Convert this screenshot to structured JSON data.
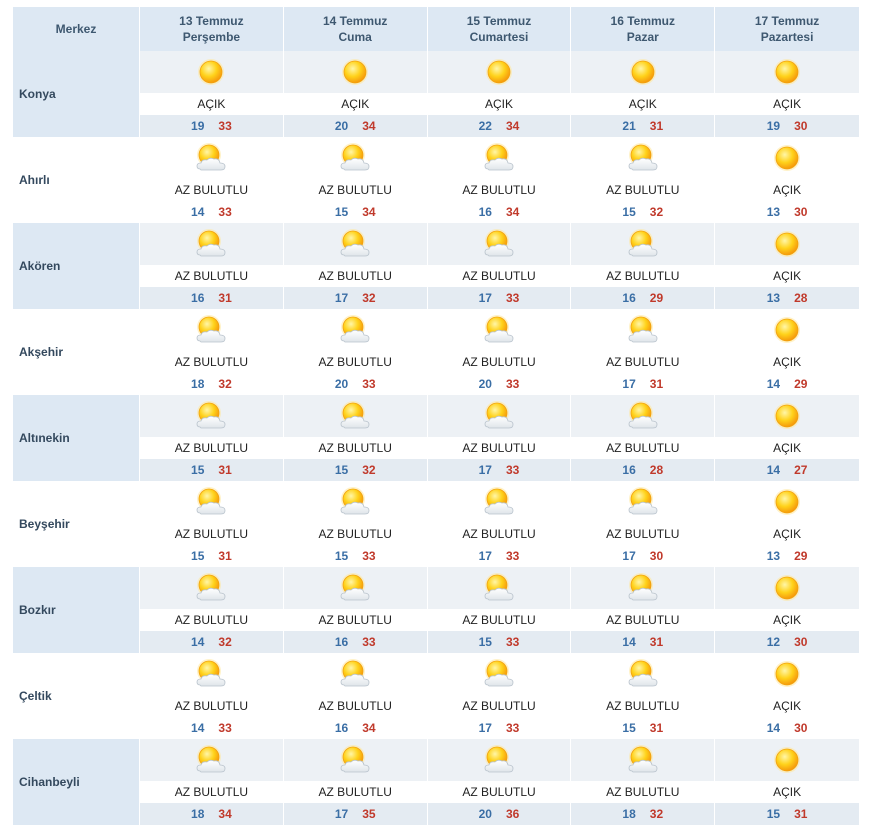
{
  "header": {
    "city_col": "Merkez",
    "days": [
      {
        "date": "13 Temmuz",
        "weekday": "Perşembe"
      },
      {
        "date": "14 Temmuz",
        "weekday": "Cuma"
      },
      {
        "date": "15 Temmuz",
        "weekday": "Cumartesi"
      },
      {
        "date": "16 Temmuz",
        "weekday": "Pazar"
      },
      {
        "date": "17 Temmuz",
        "weekday": "Pazartesi"
      }
    ]
  },
  "icons": {
    "clear": "sun-icon",
    "partly": "partly-cloudy-icon"
  },
  "colors": {
    "low": "#3a6ea5",
    "high": "#c0392b",
    "header_bg": "#dde8f3"
  },
  "rows": [
    {
      "city": "Konya",
      "days": [
        {
          "icon": "clear",
          "desc": "AÇIK",
          "lo": "19",
          "hi": "33"
        },
        {
          "icon": "clear",
          "desc": "AÇIK",
          "lo": "20",
          "hi": "34"
        },
        {
          "icon": "clear",
          "desc": "AÇIK",
          "lo": "22",
          "hi": "34"
        },
        {
          "icon": "clear",
          "desc": "AÇIK",
          "lo": "21",
          "hi": "31"
        },
        {
          "icon": "clear",
          "desc": "AÇIK",
          "lo": "19",
          "hi": "30"
        }
      ]
    },
    {
      "city": "Ahırlı",
      "days": [
        {
          "icon": "partly",
          "desc": "AZ BULUTLU",
          "lo": "14",
          "hi": "33"
        },
        {
          "icon": "partly",
          "desc": "AZ BULUTLU",
          "lo": "15",
          "hi": "34"
        },
        {
          "icon": "partly",
          "desc": "AZ BULUTLU",
          "lo": "16",
          "hi": "34"
        },
        {
          "icon": "partly",
          "desc": "AZ BULUTLU",
          "lo": "15",
          "hi": "32"
        },
        {
          "icon": "clear",
          "desc": "AÇIK",
          "lo": "13",
          "hi": "30"
        }
      ]
    },
    {
      "city": "Akören",
      "days": [
        {
          "icon": "partly",
          "desc": "AZ BULUTLU",
          "lo": "16",
          "hi": "31"
        },
        {
          "icon": "partly",
          "desc": "AZ BULUTLU",
          "lo": "17",
          "hi": "32"
        },
        {
          "icon": "partly",
          "desc": "AZ BULUTLU",
          "lo": "17",
          "hi": "33"
        },
        {
          "icon": "partly",
          "desc": "AZ BULUTLU",
          "lo": "16",
          "hi": "29"
        },
        {
          "icon": "clear",
          "desc": "AÇIK",
          "lo": "13",
          "hi": "28"
        }
      ]
    },
    {
      "city": "Akşehir",
      "days": [
        {
          "icon": "partly",
          "desc": "AZ BULUTLU",
          "lo": "18",
          "hi": "32"
        },
        {
          "icon": "partly",
          "desc": "AZ BULUTLU",
          "lo": "20",
          "hi": "33"
        },
        {
          "icon": "partly",
          "desc": "AZ BULUTLU",
          "lo": "20",
          "hi": "33"
        },
        {
          "icon": "partly",
          "desc": "AZ BULUTLU",
          "lo": "17",
          "hi": "31"
        },
        {
          "icon": "clear",
          "desc": "AÇIK",
          "lo": "14",
          "hi": "29"
        }
      ]
    },
    {
      "city": "Altınekin",
      "days": [
        {
          "icon": "partly",
          "desc": "AZ BULUTLU",
          "lo": "15",
          "hi": "31"
        },
        {
          "icon": "partly",
          "desc": "AZ BULUTLU",
          "lo": "15",
          "hi": "32"
        },
        {
          "icon": "partly",
          "desc": "AZ BULUTLU",
          "lo": "17",
          "hi": "33"
        },
        {
          "icon": "partly",
          "desc": "AZ BULUTLU",
          "lo": "16",
          "hi": "28"
        },
        {
          "icon": "clear",
          "desc": "AÇIK",
          "lo": "14",
          "hi": "27"
        }
      ]
    },
    {
      "city": "Beyşehir",
      "days": [
        {
          "icon": "partly",
          "desc": "AZ BULUTLU",
          "lo": "15",
          "hi": "31"
        },
        {
          "icon": "partly",
          "desc": "AZ BULUTLU",
          "lo": "15",
          "hi": "33"
        },
        {
          "icon": "partly",
          "desc": "AZ BULUTLU",
          "lo": "17",
          "hi": "33"
        },
        {
          "icon": "partly",
          "desc": "AZ BULUTLU",
          "lo": "17",
          "hi": "30"
        },
        {
          "icon": "clear",
          "desc": "AÇIK",
          "lo": "13",
          "hi": "29"
        }
      ]
    },
    {
      "city": "Bozkır",
      "days": [
        {
          "icon": "partly",
          "desc": "AZ BULUTLU",
          "lo": "14",
          "hi": "32"
        },
        {
          "icon": "partly",
          "desc": "AZ BULUTLU",
          "lo": "16",
          "hi": "33"
        },
        {
          "icon": "partly",
          "desc": "AZ BULUTLU",
          "lo": "15",
          "hi": "33"
        },
        {
          "icon": "partly",
          "desc": "AZ BULUTLU",
          "lo": "14",
          "hi": "31"
        },
        {
          "icon": "clear",
          "desc": "AÇIK",
          "lo": "12",
          "hi": "30"
        }
      ]
    },
    {
      "city": "Çeltik",
      "days": [
        {
          "icon": "partly",
          "desc": "AZ BULUTLU",
          "lo": "14",
          "hi": "33"
        },
        {
          "icon": "partly",
          "desc": "AZ BULUTLU",
          "lo": "16",
          "hi": "34"
        },
        {
          "icon": "partly",
          "desc": "AZ BULUTLU",
          "lo": "17",
          "hi": "33"
        },
        {
          "icon": "partly",
          "desc": "AZ BULUTLU",
          "lo": "15",
          "hi": "31"
        },
        {
          "icon": "clear",
          "desc": "AÇIK",
          "lo": "14",
          "hi": "30"
        }
      ]
    },
    {
      "city": "Cihanbeyli",
      "days": [
        {
          "icon": "partly",
          "desc": "AZ BULUTLU",
          "lo": "18",
          "hi": "34"
        },
        {
          "icon": "partly",
          "desc": "AZ BULUTLU",
          "lo": "17",
          "hi": "35"
        },
        {
          "icon": "partly",
          "desc": "AZ BULUTLU",
          "lo": "20",
          "hi": "36"
        },
        {
          "icon": "partly",
          "desc": "AZ BULUTLU",
          "lo": "18",
          "hi": "32"
        },
        {
          "icon": "clear",
          "desc": "AÇIK",
          "lo": "15",
          "hi": "31"
        }
      ]
    }
  ]
}
